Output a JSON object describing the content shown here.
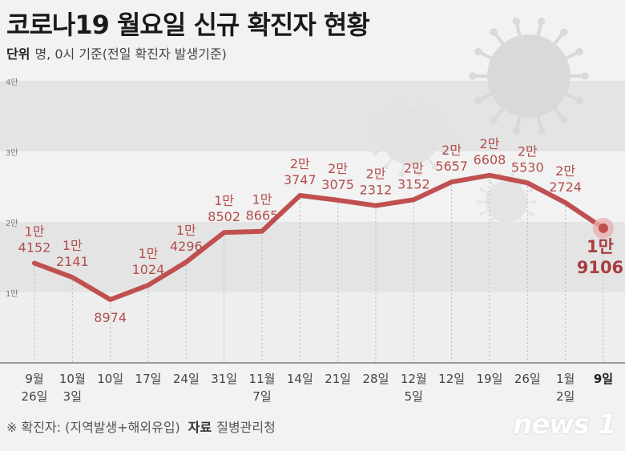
{
  "title": "코로나19 월요일 신규 확진자 현황",
  "unit_label": "단위",
  "unit_text": "명, 0시 기준(전일 확진자 발생기준)",
  "footer": {
    "note": "※ 확진자: (지역발생+해외유입)",
    "source_label": "자료",
    "source": "질병관리청"
  },
  "logo": "news 1",
  "colors": {
    "line": "#c05050",
    "band": "#e4e4e4",
    "virus": "#dcdcdc"
  },
  "chart_data": {
    "type": "line",
    "title": "코로나19 월요일 신규 확진자 현황",
    "ylabel": "명",
    "ylim": [
      0,
      40000
    ],
    "yticks": [
      {
        "value": 10000,
        "label": "1만"
      },
      {
        "value": 20000,
        "label": "2만"
      },
      {
        "value": 30000,
        "label": "3만"
      },
      {
        "value": 40000,
        "label": "4만"
      }
    ],
    "categories": [
      [
        "9월",
        "26일"
      ],
      [
        "10월",
        "3일"
      ],
      [
        "10일"
      ],
      [
        "17일"
      ],
      [
        "24일"
      ],
      [
        "31일"
      ],
      [
        "11월",
        "7일"
      ],
      [
        "14일"
      ],
      [
        "21일"
      ],
      [
        "28일"
      ],
      [
        "12월",
        "5일"
      ],
      [
        "12일"
      ],
      [
        "19일"
      ],
      [
        "26일"
      ],
      [
        "1월",
        "2일"
      ],
      [
        "9일"
      ]
    ],
    "values": [
      14152,
      12141,
      8974,
      11024,
      14296,
      18502,
      18665,
      23747,
      23075,
      22312,
      23152,
      25657,
      26608,
      25530,
      22724,
      19106
    ],
    "labels": [
      [
        "1만",
        "4152"
      ],
      [
        "1만",
        "2141"
      ],
      [
        "8974"
      ],
      [
        "1만",
        "1024"
      ],
      [
        "1만",
        "4296"
      ],
      [
        "1만",
        "8502"
      ],
      [
        "1만",
        "8665"
      ],
      [
        "2만",
        "3747"
      ],
      [
        "2만",
        "3075"
      ],
      [
        "2만",
        "2312"
      ],
      [
        "2만",
        "3152"
      ],
      [
        "2만",
        "5657"
      ],
      [
        "2만",
        "6608"
      ],
      [
        "2만",
        "5530"
      ],
      [
        "2만",
        "2724"
      ],
      [
        "1만",
        "9106"
      ]
    ]
  }
}
